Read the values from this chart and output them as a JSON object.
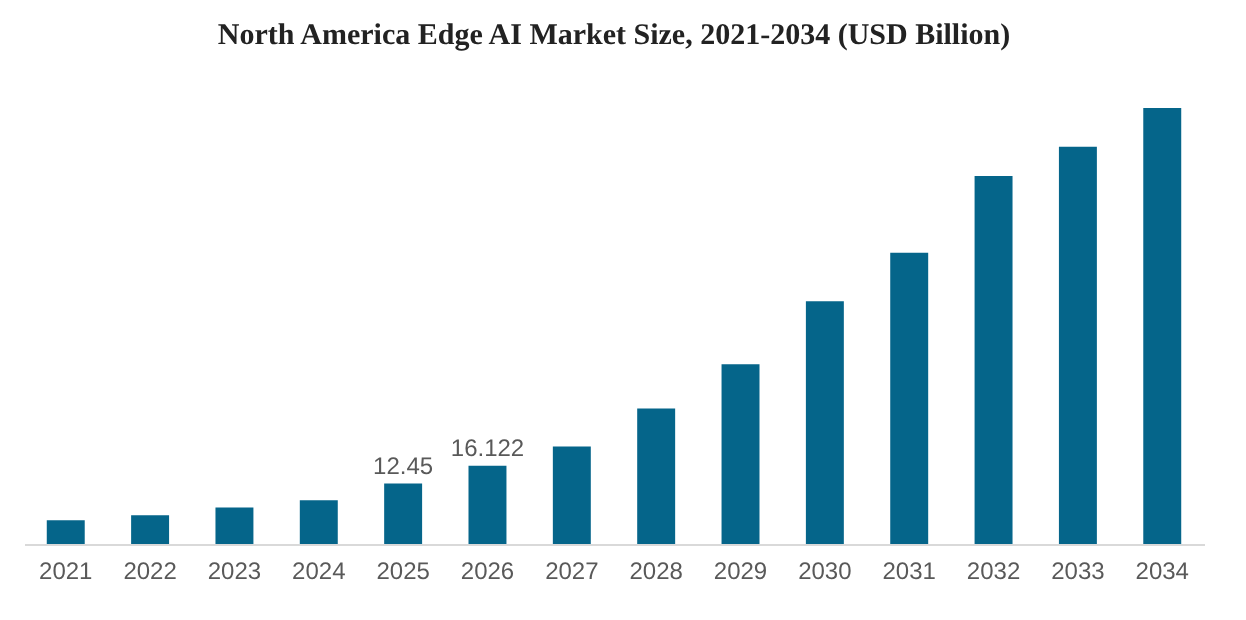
{
  "chart_data": {
    "type": "bar",
    "title": "North America Edge AI Market Size, 2021-2034 (USD Billion)",
    "categories": [
      "2021",
      "2022",
      "2023",
      "2024",
      "2025",
      "2026",
      "2027",
      "2028",
      "2029",
      "2030",
      "2031",
      "2032",
      "2033",
      "2034"
    ],
    "values": [
      4.9,
      5.9,
      7.5,
      9.0,
      12.45,
      16.122,
      20.1,
      27.9,
      37.0,
      50.0,
      60.0,
      75.8,
      81.8,
      89.8
    ],
    "value_labels": [
      null,
      null,
      null,
      null,
      "12.45",
      "16.122",
      null,
      null,
      null,
      null,
      null,
      null,
      null,
      null
    ],
    "color": "#05658a",
    "grid": false
  }
}
